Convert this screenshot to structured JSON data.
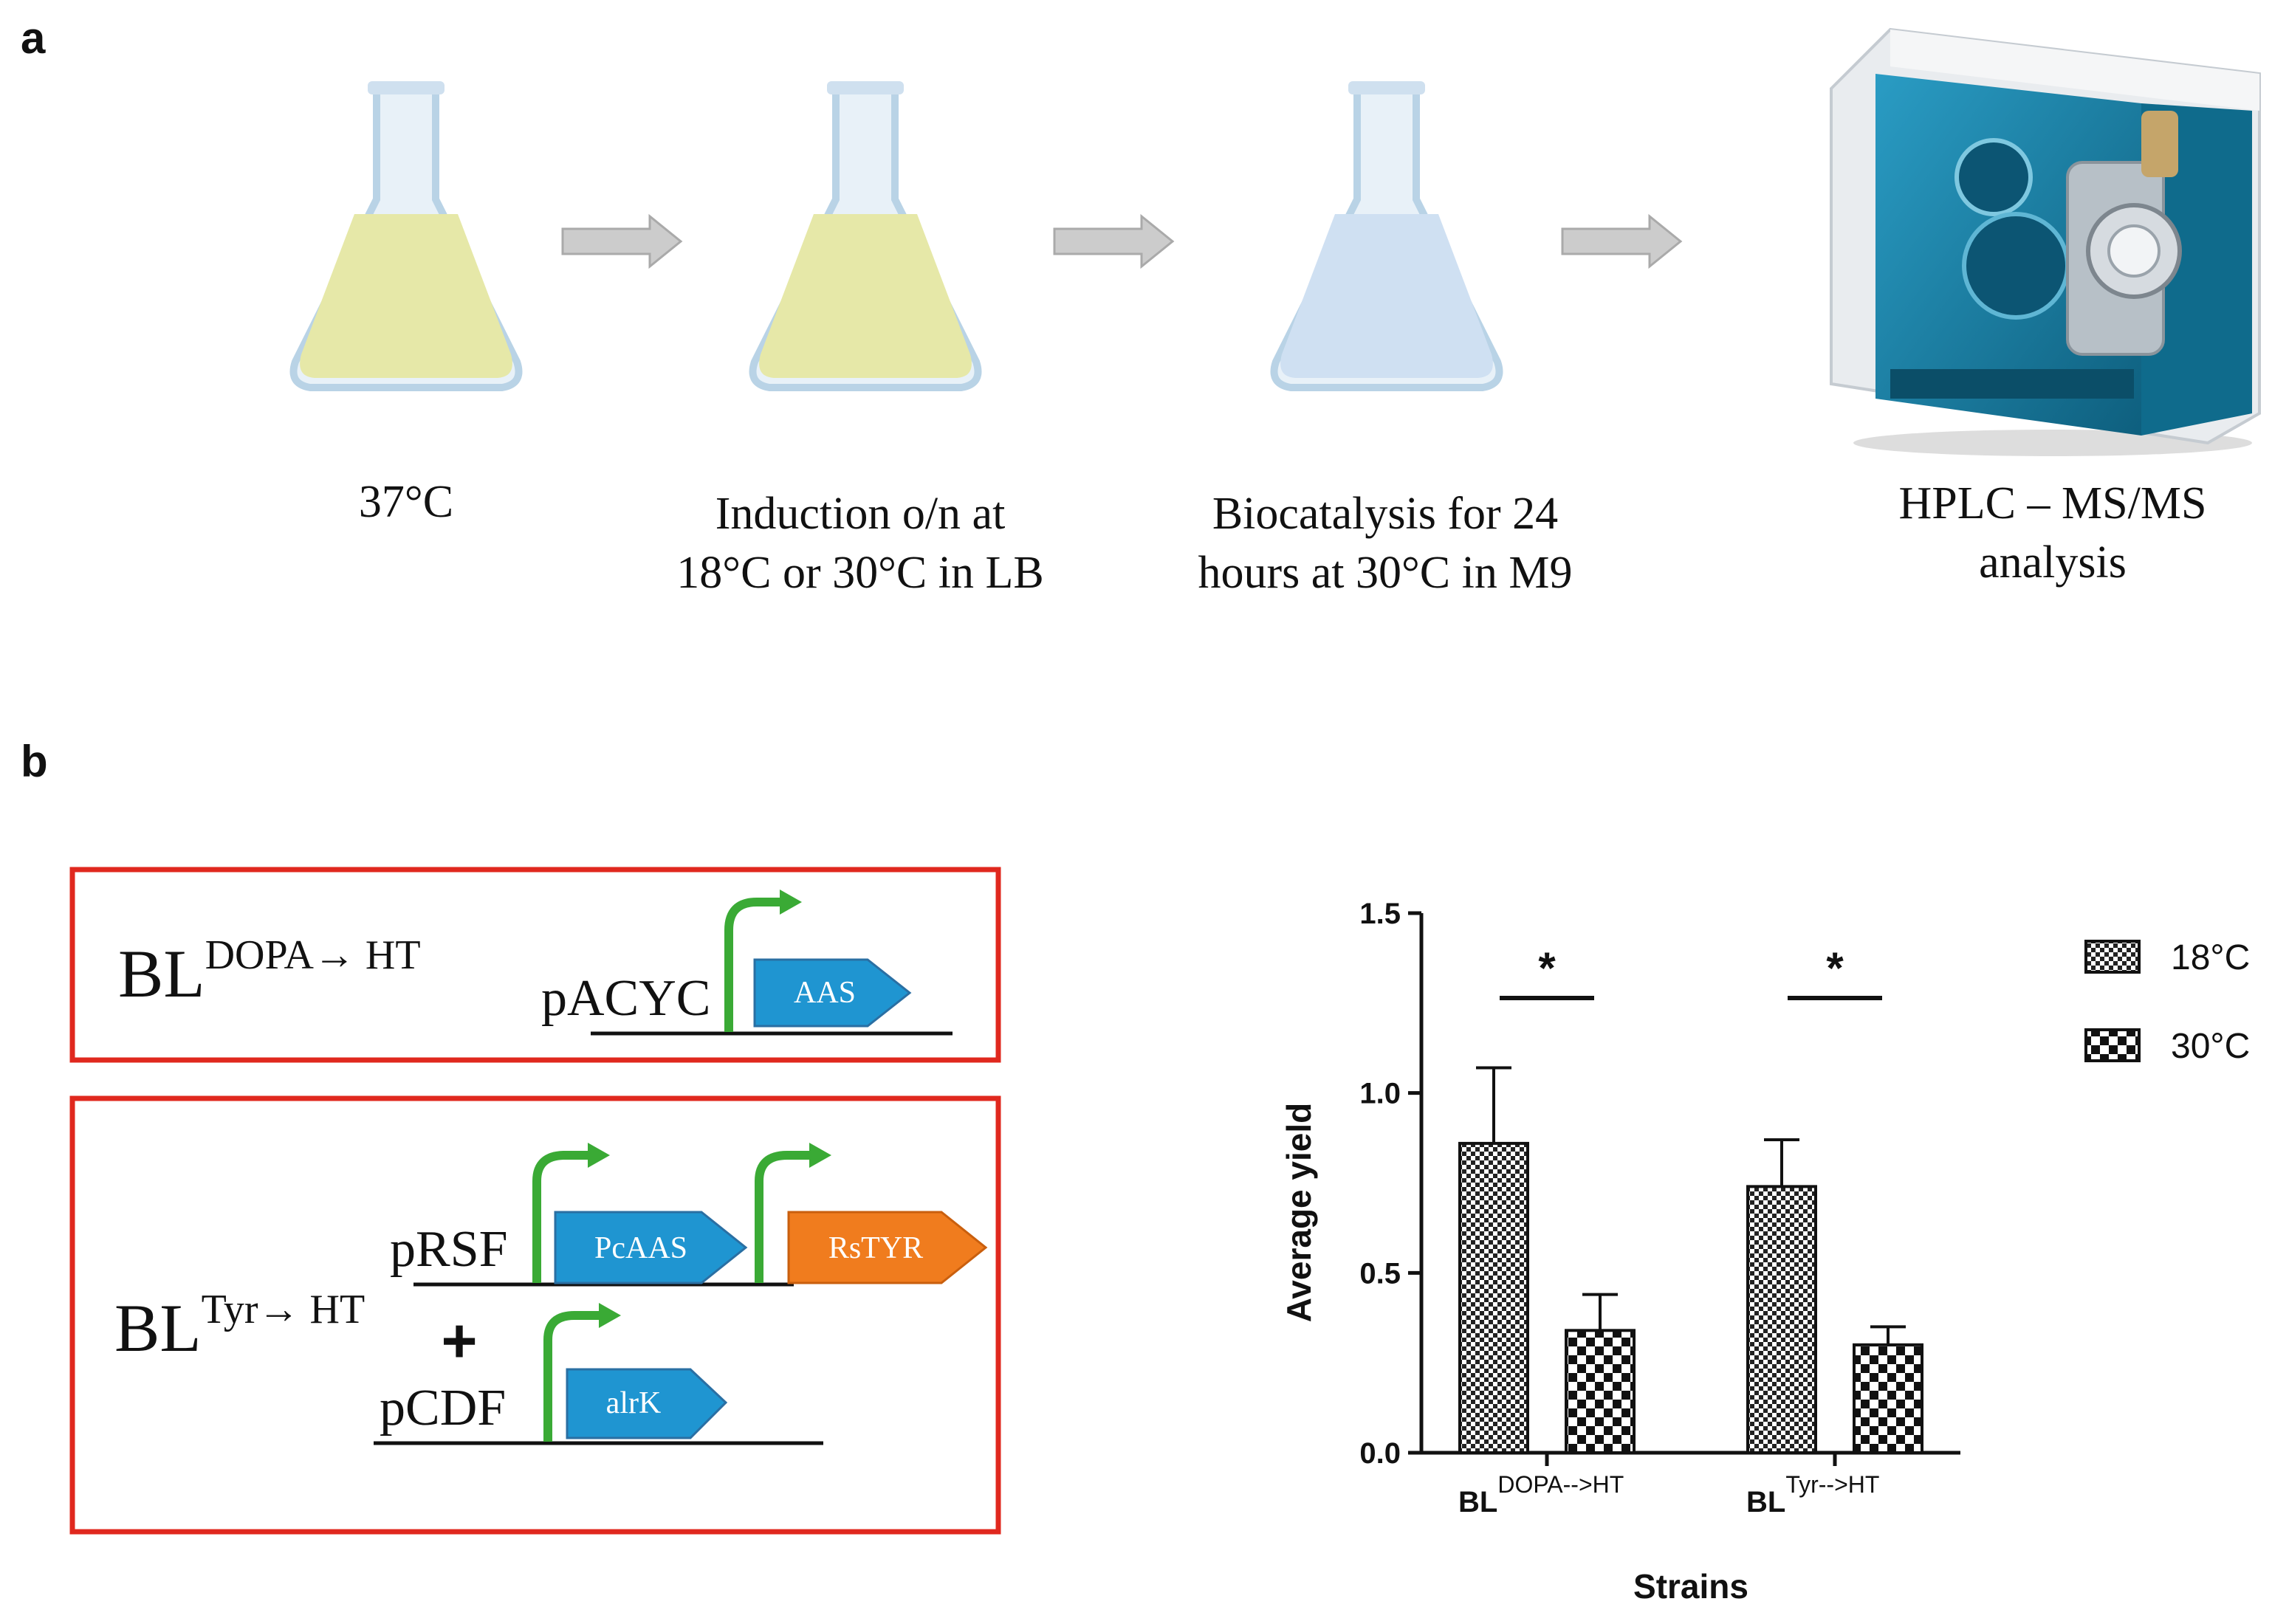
{
  "panel_a": {
    "label": "a",
    "steps": [
      {
        "label_lines": [
          "37°C"
        ]
      },
      {
        "label_lines": [
          "Induction o/n at",
          "18°C or 30°C in LB"
        ]
      },
      {
        "label_lines": [
          "Biocatalysis for 24",
          "hours at 30°C in M9"
        ]
      },
      {
        "label_lines": [
          "HPLC – MS/MS",
          "analysis"
        ]
      }
    ],
    "colors": {
      "flask_outline": "#b9d3e6",
      "flask_yellow": "#e6e8a8",
      "flask_blue": "#cfe0f2",
      "arrow": "#c8c8c8",
      "instrument": "#1a7ea3"
    }
  },
  "panel_b": {
    "label": "b",
    "construct_1": {
      "strain_base": "BL",
      "strain_sup": "DOPA→ HT",
      "plasmid": "pACYC",
      "gene": "AAS"
    },
    "construct_2": {
      "strain_base": "BL",
      "strain_sup": "Tyr→ HT",
      "plasmid_1": "pRSF",
      "gene_1": "PcAAS",
      "gene_2": "RsTYR",
      "plus": "+",
      "plasmid_2": "pCDF",
      "gene_3": "alrK"
    },
    "colors": {
      "box_border": "#e0281e",
      "promoter": "#3aaa35",
      "gene_blue": "#1f95d1",
      "gene_orange": "#f07c1e"
    }
  },
  "chart_data": {
    "type": "bar",
    "ylabel": "Average yield",
    "xlabel": "Strains",
    "ylim": [
      0,
      1.5
    ],
    "yticks": [
      "0.0",
      "0.5",
      "1.0",
      "1.5"
    ],
    "ytick_values": [
      0,
      0.5,
      1.0,
      1.5
    ],
    "categories": [
      {
        "base": "BL",
        "sup": "DOPA-->HT"
      },
      {
        "base": "BL",
        "sup": "Tyr-->HT"
      }
    ],
    "series": [
      {
        "name": "18°C",
        "pattern": "fine-checker",
        "values": [
          0.86,
          0.74
        ],
        "errors": [
          0.21,
          0.13
        ]
      },
      {
        "name": "30°C",
        "pattern": "coarse-checker",
        "values": [
          0.34,
          0.3
        ],
        "errors": [
          0.1,
          0.05
        ]
      }
    ],
    "significance": [
      "*",
      "*"
    ],
    "legend_position": "top-right"
  }
}
